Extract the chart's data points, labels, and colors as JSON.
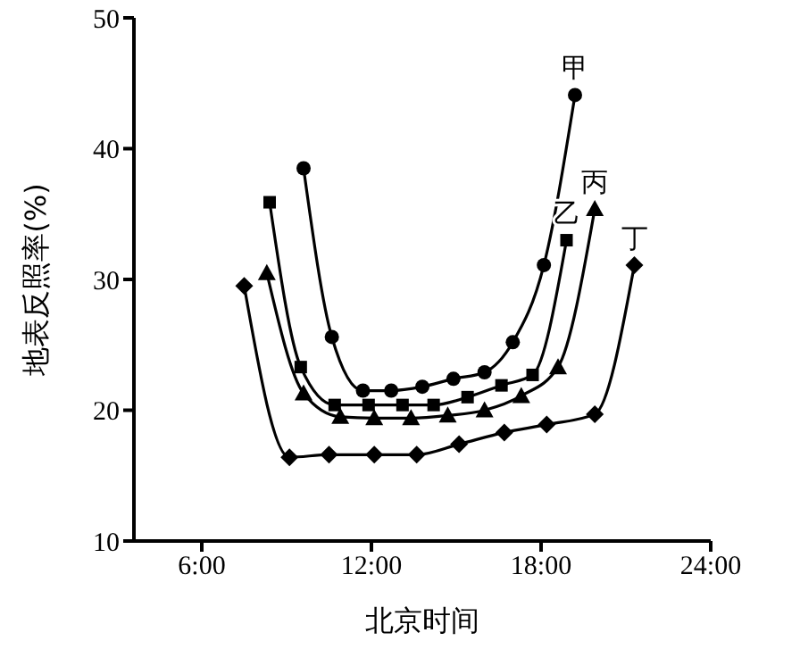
{
  "chart_data": {
    "type": "line",
    "xlabel": "北京时间",
    "ylabel": "地表反照率(%)",
    "xlim": [
      3.6,
      24
    ],
    "xticks": [
      {
        "value": 6,
        "label": "6:00"
      },
      {
        "value": 12,
        "label": "12:00"
      },
      {
        "value": 18,
        "label": "18:00"
      },
      {
        "value": 24,
        "label": "24:00"
      }
    ],
    "ylim": [
      10,
      50
    ],
    "yticks": [
      10,
      20,
      30,
      40,
      50
    ],
    "grid": false,
    "legend": false,
    "line_style": "solid",
    "series": [
      {
        "name": "甲",
        "color": "#000000",
        "marker": "circle",
        "x": [
          9.6,
          10.6,
          11.7,
          12.7,
          13.8,
          14.9,
          16.0,
          17.0,
          18.1,
          19.2
        ],
        "values": [
          38.5,
          25.6,
          21.5,
          21.5,
          21.8,
          22.4,
          22.9,
          25.2,
          31.1,
          44.1
        ]
      },
      {
        "name": "乙",
        "color": "#000000",
        "marker": "square",
        "x": [
          8.4,
          9.5,
          10.7,
          11.9,
          13.1,
          14.2,
          15.4,
          16.6,
          17.7,
          18.9
        ],
        "values": [
          35.9,
          23.3,
          20.4,
          20.4,
          20.4,
          20.4,
          21.0,
          21.9,
          22.7,
          33.0
        ]
      },
      {
        "name": "丙",
        "color": "#000000",
        "marker": "triangle",
        "x": [
          8.3,
          9.6,
          10.9,
          12.1,
          13.4,
          14.7,
          16.0,
          17.3,
          18.6,
          19.9
        ],
        "values": [
          30.5,
          21.3,
          19.5,
          19.4,
          19.4,
          19.6,
          20.0,
          21.1,
          23.3,
          35.4
        ]
      },
      {
        "name": "丁",
        "color": "#000000",
        "marker": "diamond",
        "x": [
          7.5,
          9.1,
          10.5,
          12.1,
          13.6,
          15.1,
          16.7,
          18.2,
          19.9,
          21.3
        ],
        "values": [
          29.5,
          16.4,
          16.6,
          16.6,
          16.6,
          17.4,
          18.3,
          18.9,
          19.7,
          31.1
        ]
      }
    ]
  }
}
